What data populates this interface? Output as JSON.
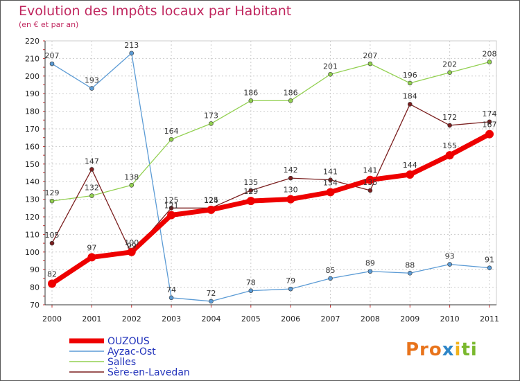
{
  "chart_data": {
    "type": "line",
    "title": "Evolution des Impôts locaux par Habitant",
    "subtitle": "(en € et par an)",
    "xlabel": "",
    "ylabel": "",
    "x": [
      "2000",
      "2001",
      "2002",
      "2003",
      "2004",
      "2005",
      "2006",
      "2007",
      "2008",
      "2009",
      "2010",
      "2011"
    ],
    "ylim": [
      70,
      220
    ],
    "yticks": [
      70,
      80,
      90,
      100,
      110,
      120,
      130,
      140,
      150,
      160,
      170,
      180,
      190,
      200,
      210,
      220
    ],
    "grid": true,
    "series": [
      {
        "name": "OUZOUS",
        "color": "#ee0000",
        "thick": true,
        "values": [
          82,
          97,
          100,
          121,
          124,
          129,
          130,
          134,
          141,
          144,
          155,
          167
        ]
      },
      {
        "name": "Ayzac-Ost",
        "color": "#5b9bd5",
        "values": [
          207,
          193,
          213,
          74,
          72,
          78,
          79,
          85,
          89,
          88,
          93,
          91
        ]
      },
      {
        "name": "Salles",
        "color": "#92d050",
        "values": [
          129,
          132,
          138,
          164,
          173,
          186,
          186,
          201,
          207,
          196,
          202,
          208
        ]
      },
      {
        "name": "Sère-en-Lavedan",
        "color": "#7b1f1f",
        "values": [
          105,
          147,
          99,
          125,
          125,
          135,
          142,
          141,
          135,
          184,
          172,
          174
        ]
      }
    ],
    "legend_position": "bottom-left"
  },
  "logo": {
    "p1": "Pro",
    "p2": "x",
    "p3": "i",
    "p4": "ti"
  }
}
